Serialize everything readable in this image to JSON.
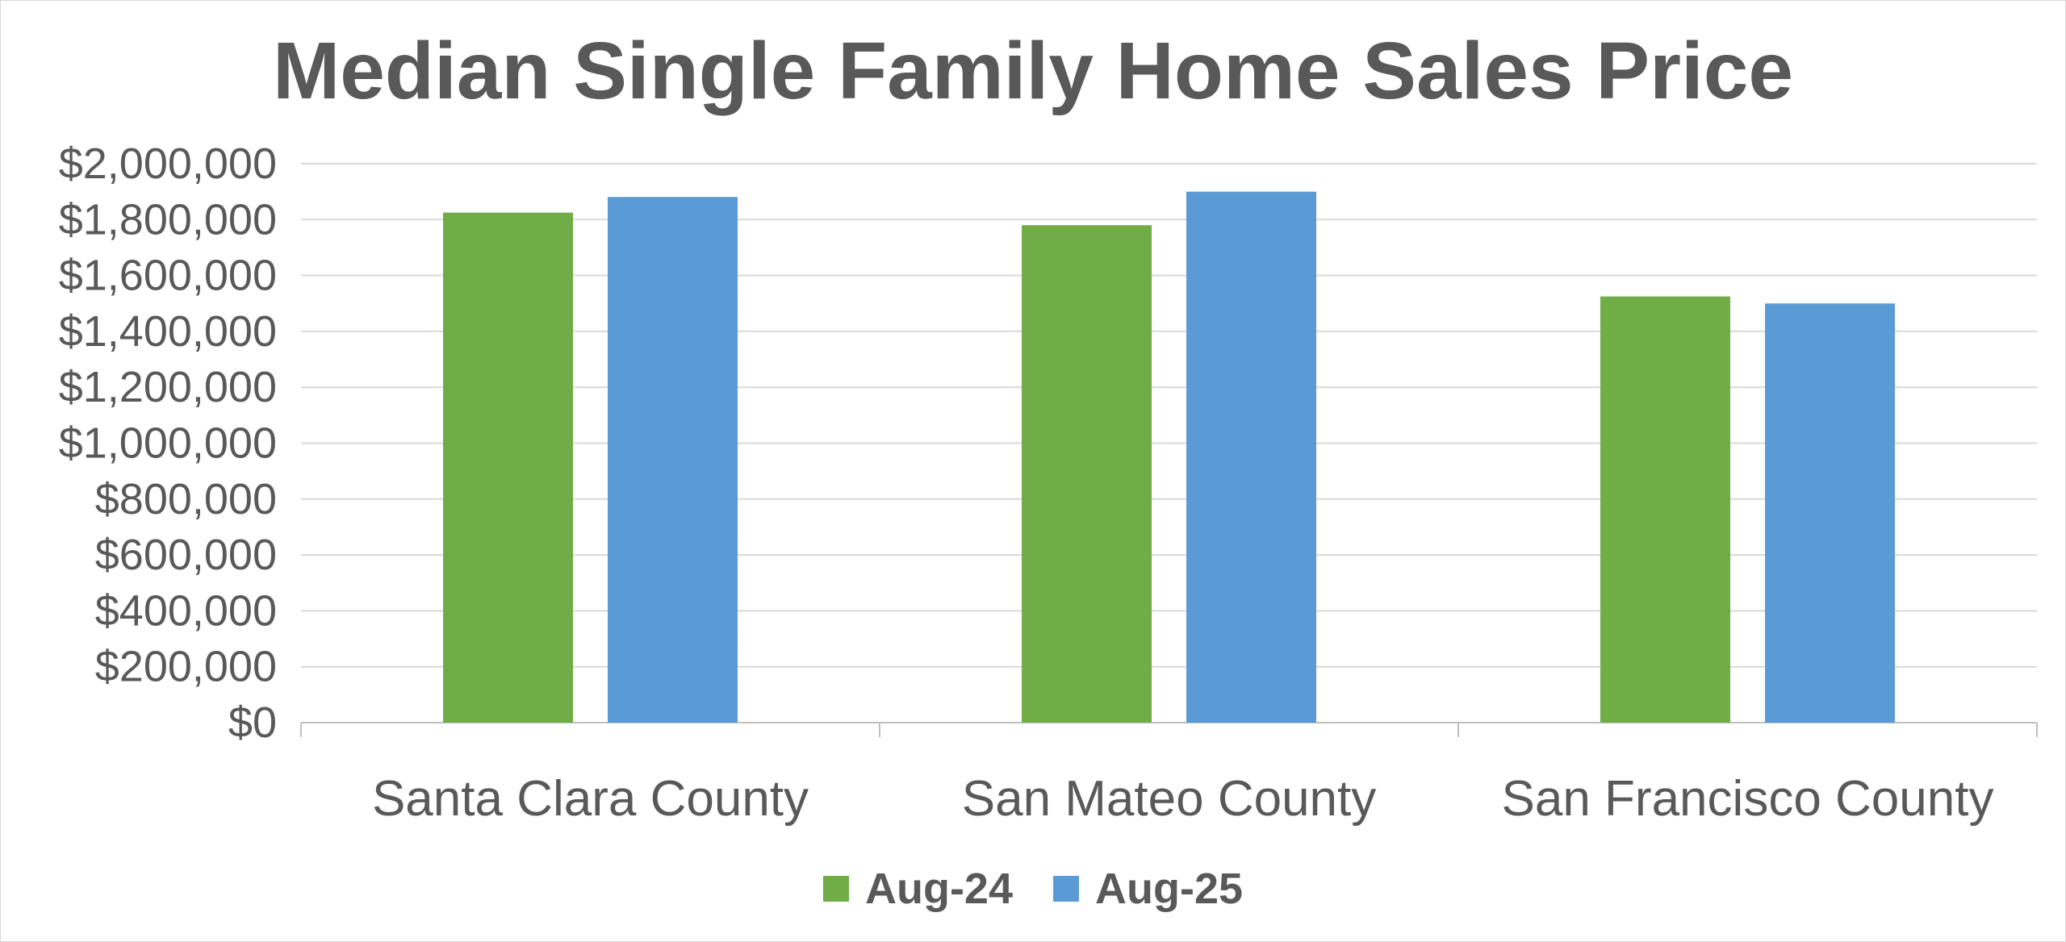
{
  "chart_data": {
    "type": "bar",
    "title": "Median Single Family Home Sales Price",
    "categories": [
      "Santa Clara County",
      "San Mateo County",
      "San Francisco County"
    ],
    "series": [
      {
        "name": "Aug-24",
        "color": "#70AD47",
        "values": [
          1825000,
          1780000,
          1525000
        ]
      },
      {
        "name": "Aug-25",
        "color": "#5B9BD5",
        "values": [
          1881000,
          1900000,
          1500000
        ]
      }
    ],
    "ylim": [
      0,
      2000000
    ],
    "yticks": [
      "$0",
      "$200,000",
      "$400,000",
      "$600,000",
      "$800,000",
      "$1,000,000",
      "$1,200,000",
      "$1,400,000",
      "$1,600,000",
      "$1,800,000",
      "$2,000,000"
    ],
    "grid": true,
    "legend": "bottom"
  }
}
